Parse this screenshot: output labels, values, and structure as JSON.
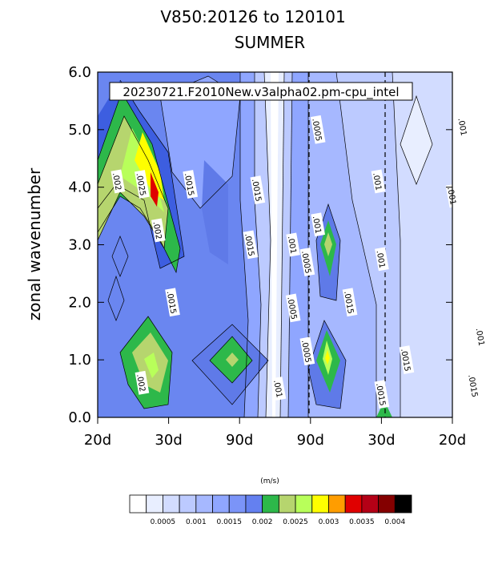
{
  "chart_data": {
    "type": "heatmap",
    "title": "V850:20126 to 120101",
    "subtitle": "SUMMER",
    "annotation": "20230721.F2010New.v3alpha02.pm-cpu_intel",
    "ylabel": "zonal wavenumber",
    "xlabel": "",
    "y_ticks": [
      "0.0",
      "1.0",
      "2.0",
      "3.0",
      "4.0",
      "5.0",
      "6.0"
    ],
    "x_ticks": [
      "20d",
      "30d",
      "90d",
      "90d",
      "30d",
      "20d"
    ],
    "ylim": [
      0,
      6
    ],
    "dashed_lines_at": [
      "90d",
      "30d"
    ],
    "colorbar_units": "(m/s)",
    "colorbar_ticks": [
      "0.0005",
      "0.001",
      "0.0015",
      "0.002",
      "0.0025",
      "0.003",
      "0.0035",
      "0.004"
    ],
    "colorbar_colors": [
      "#ffffff",
      "#e8eeff",
      "#d2dcff",
      "#bccaff",
      "#a6b8ff",
      "#8fa6ff",
      "#7b94f8",
      "#6480f0",
      "#2db84a",
      "#b6d56e",
      "#b8ff5a",
      "#ffff00",
      "#ff9d00",
      "#e00000",
      "#b40016",
      "#840000",
      "#000000"
    ],
    "contour_labels": [
      {
        "text": ".002",
        "x": 0.28,
        "y": 4.1
      },
      {
        "text": ".0025",
        "x": 0.62,
        "y": 4.05
      },
      {
        "text": ".002",
        "x": 0.85,
        "y": 3.25
      },
      {
        "text": ".0015",
        "x": 1.3,
        "y": 4.05
      },
      {
        "text": ".0015",
        "x": 2.25,
        "y": 3.95
      },
      {
        "text": ".0015",
        "x": 2.15,
        "y": 3.0
      },
      {
        "text": ".001",
        "x": 2.75,
        "y": 3.0
      },
      {
        "text": ".001",
        "x": 3.1,
        "y": 3.35
      },
      {
        "text": ".0005",
        "x": 3.1,
        "y": 5.0
      },
      {
        "text": ".0005",
        "x": 2.95,
        "y": 2.7
      },
      {
        "text": ".0005",
        "x": 2.75,
        "y": 1.9
      },
      {
        "text": ".0005",
        "x": 2.95,
        "y": 1.15
      },
      {
        "text": ".001",
        "x": 2.55,
        "y": 0.5
      },
      {
        "text": ".0015",
        "x": 1.05,
        "y": 2.0
      },
      {
        "text": ".002",
        "x": 0.62,
        "y": 0.6
      },
      {
        "text": ".0015",
        "x": 3.55,
        "y": 2.0
      },
      {
        "text": ".001",
        "x": 3.95,
        "y": 4.1
      },
      {
        "text": ".001",
        "x": 4.0,
        "y": 2.75
      },
      {
        "text": ".0015",
        "x": 4.35,
        "y": 1.0
      },
      {
        "text": ".0015",
        "x": 4.0,
        "y": 0.4
      },
      {
        "text": ".001",
        "x": 5.15,
        "y": 5.05
      },
      {
        "text": ".001",
        "x": 5.0,
        "y": 3.85
      },
      {
        "text": ".001",
        "x": 5.4,
        "y": 1.4
      },
      {
        "text": ".0015",
        "x": 5.3,
        "y": 0.55
      }
    ]
  }
}
